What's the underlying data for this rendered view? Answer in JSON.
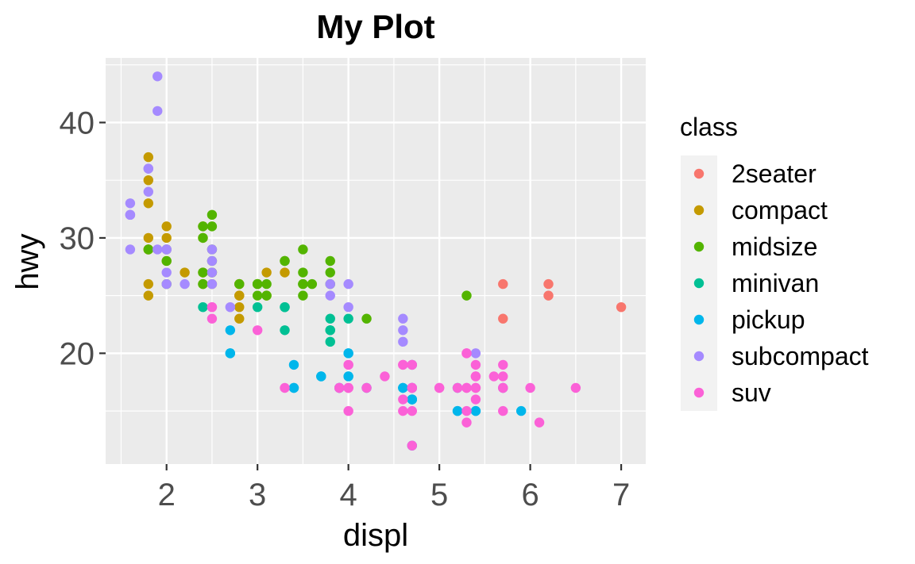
{
  "chart_data": {
    "type": "scatter",
    "title": "My Plot",
    "xlabel": "displ",
    "ylabel": "hwy",
    "xlim": [
      1.33,
      7.27
    ],
    "ylim": [
      10.4,
      45.6
    ],
    "x_ticks": [
      2,
      3,
      4,
      5,
      6,
      7
    ],
    "x_tick_labels": [
      "2",
      "3",
      "4",
      "5",
      "6",
      "7"
    ],
    "y_ticks": [
      20,
      30,
      40
    ],
    "y_tick_labels": [
      "20",
      "30",
      "40"
    ],
    "grid": true,
    "legend": {
      "title": "class",
      "position": "right",
      "entries": [
        "2seater",
        "compact",
        "midsize",
        "minivan",
        "pickup",
        "subcompact",
        "suv"
      ]
    },
    "colors": {
      "2seater": "#F8766D",
      "compact": "#C49A00",
      "midsize": "#53B400",
      "minivan": "#00C094",
      "pickup": "#00B6EB",
      "subcompact": "#A58AFF",
      "suv": "#FB61D7"
    },
    "series": [
      {
        "name": "2seater",
        "points": [
          [
            5.7,
            26
          ],
          [
            5.7,
            23
          ],
          [
            6.2,
            26
          ],
          [
            6.2,
            25
          ],
          [
            7.0,
            24
          ]
        ]
      },
      {
        "name": "compact",
        "points": [
          [
            1.8,
            29
          ],
          [
            1.8,
            29
          ],
          [
            2.0,
            31
          ],
          [
            2.0,
            30
          ],
          [
            2.8,
            26
          ],
          [
            2.8,
            26
          ],
          [
            3.1,
            27
          ],
          [
            1.8,
            26
          ],
          [
            1.8,
            25
          ],
          [
            2.0,
            28
          ],
          [
            2.0,
            29
          ],
          [
            2.8,
            25
          ],
          [
            2.8,
            25
          ],
          [
            3.1,
            25
          ],
          [
            1.8,
            33
          ],
          [
            1.8,
            35
          ],
          [
            1.8,
            37
          ],
          [
            1.8,
            30
          ],
          [
            2.2,
            27
          ],
          [
            2.4,
            27
          ],
          [
            2.4,
            30
          ],
          [
            2.4,
            31
          ],
          [
            2.5,
            26
          ],
          [
            2.5,
            27
          ],
          [
            3.0,
            26
          ],
          [
            3.3,
            27
          ],
          [
            2.8,
            23
          ],
          [
            2.8,
            24
          ],
          [
            1.8,
            29
          ],
          [
            2.4,
            26
          ]
        ]
      },
      {
        "name": "midsize",
        "points": [
          [
            2.4,
            27
          ],
          [
            3.0,
            26
          ],
          [
            3.1,
            26
          ],
          [
            2.4,
            26
          ],
          [
            3.1,
            25
          ],
          [
            2.5,
            32
          ],
          [
            2.5,
            31
          ],
          [
            3.0,
            25
          ],
          [
            3.0,
            26
          ],
          [
            3.5,
            26
          ],
          [
            3.0,
            26
          ],
          [
            3.5,
            25
          ],
          [
            3.3,
            28
          ],
          [
            3.3,
            28
          ],
          [
            3.8,
            28
          ],
          [
            3.8,
            27
          ],
          [
            3.8,
            26
          ],
          [
            4.2,
            23
          ],
          [
            5.3,
            25
          ],
          [
            2.4,
            30
          ],
          [
            2.4,
            31
          ],
          [
            3.5,
            26
          ],
          [
            3.5,
            29
          ],
          [
            3.5,
            27
          ],
          [
            2.5,
            29
          ],
          [
            2.5,
            27
          ],
          [
            2.5,
            28
          ],
          [
            2.8,
            26
          ],
          [
            3.6,
            26
          ],
          [
            2.0,
            29
          ],
          [
            2.0,
            28
          ],
          [
            1.8,
            29
          ],
          [
            2.0,
            26
          ]
        ]
      },
      {
        "name": "minivan",
        "points": [
          [
            2.4,
            24
          ],
          [
            3.0,
            24
          ],
          [
            3.3,
            22
          ],
          [
            3.3,
            24
          ],
          [
            3.3,
            24
          ],
          [
            3.8,
            22
          ],
          [
            3.8,
            21
          ],
          [
            3.8,
            23
          ],
          [
            4.0,
            23
          ],
          [
            3.8,
            22
          ]
        ]
      },
      {
        "name": "pickup",
        "points": [
          [
            3.7,
            18
          ],
          [
            3.7,
            18
          ],
          [
            3.9,
            17
          ],
          [
            3.9,
            17
          ],
          [
            4.7,
            16
          ],
          [
            4.7,
            17
          ],
          [
            4.7,
            16
          ],
          [
            5.2,
            15
          ],
          [
            5.7,
            17
          ],
          [
            5.9,
            15
          ],
          [
            4.7,
            16
          ],
          [
            4.7,
            12
          ],
          [
            4.7,
            17
          ],
          [
            4.7,
            16
          ],
          [
            5.2,
            15
          ],
          [
            5.2,
            17
          ],
          [
            4.6,
            17
          ],
          [
            5.4,
            15
          ],
          [
            5.4,
            15
          ],
          [
            2.7,
            20
          ],
          [
            2.7,
            22
          ],
          [
            2.7,
            20
          ],
          [
            3.4,
            17
          ],
          [
            3.4,
            19
          ],
          [
            4.0,
            18
          ],
          [
            4.0,
            20
          ],
          [
            4.7,
            19
          ],
          [
            4.7,
            17
          ],
          [
            4.0,
            18
          ],
          [
            4.0,
            20
          ],
          [
            4.6,
            17
          ],
          [
            4.2,
            17
          ],
          [
            3.4,
            17
          ]
        ]
      },
      {
        "name": "subcompact",
        "points": [
          [
            3.8,
            26
          ],
          [
            3.8,
            25
          ],
          [
            4.0,
            26
          ],
          [
            4.0,
            24
          ],
          [
            4.6,
            21
          ],
          [
            4.6,
            22
          ],
          [
            4.6,
            23
          ],
          [
            5.4,
            20
          ],
          [
            1.6,
            33
          ],
          [
            1.6,
            32
          ],
          [
            1.6,
            32
          ],
          [
            1.6,
            29
          ],
          [
            1.6,
            32
          ],
          [
            1.8,
            34
          ],
          [
            1.8,
            36
          ],
          [
            1.8,
            36
          ],
          [
            2.0,
            29
          ],
          [
            2.0,
            26
          ],
          [
            2.0,
            27
          ],
          [
            1.9,
            44
          ],
          [
            1.9,
            41
          ],
          [
            2.0,
            29
          ],
          [
            2.5,
            26
          ],
          [
            2.5,
            28
          ],
          [
            2.5,
            27
          ],
          [
            2.5,
            29
          ],
          [
            2.2,
            26
          ],
          [
            2.7,
            24
          ],
          [
            1.9,
            29
          ],
          [
            2.0,
            29
          ]
        ]
      },
      {
        "name": "suv",
        "points": [
          [
            5.3,
            20
          ],
          [
            5.3,
            15
          ],
          [
            5.3,
            20
          ],
          [
            5.7,
            17
          ],
          [
            6.5,
            17
          ],
          [
            4.7,
            17
          ],
          [
            4.7,
            17
          ],
          [
            5.7,
            19
          ],
          [
            5.7,
            18
          ],
          [
            6.1,
            14
          ],
          [
            5.7,
            15
          ],
          [
            6.0,
            17
          ],
          [
            3.9,
            17
          ],
          [
            3.9,
            17
          ],
          [
            4.7,
            19
          ],
          [
            4.7,
            12
          ],
          [
            5.2,
            17
          ],
          [
            5.7,
            17
          ],
          [
            4.0,
            17
          ],
          [
            4.0,
            17
          ],
          [
            4.6,
            15
          ],
          [
            5.0,
            17
          ],
          [
            4.2,
            17
          ],
          [
            4.4,
            18
          ],
          [
            4.6,
            19
          ],
          [
            5.4,
            17
          ],
          [
            5.4,
            18
          ],
          [
            5.4,
            16
          ],
          [
            4.0,
            15
          ],
          [
            4.0,
            17
          ],
          [
            4.0,
            19
          ],
          [
            4.0,
            19
          ],
          [
            4.6,
            16
          ],
          [
            5.0,
            17
          ],
          [
            4.7,
            17
          ],
          [
            4.7,
            19
          ],
          [
            4.7,
            15
          ],
          [
            4.7,
            17
          ],
          [
            5.3,
            14
          ],
          [
            5.3,
            17
          ],
          [
            5.4,
            17
          ],
          [
            5.4,
            18
          ],
          [
            2.5,
            24
          ],
          [
            2.5,
            24
          ],
          [
            2.5,
            23
          ],
          [
            3.0,
            22
          ],
          [
            3.3,
            17
          ],
          [
            4.6,
            19
          ],
          [
            5.6,
            18
          ],
          [
            5.3,
            17
          ],
          [
            5.4,
            19
          ]
        ]
      }
    ]
  }
}
